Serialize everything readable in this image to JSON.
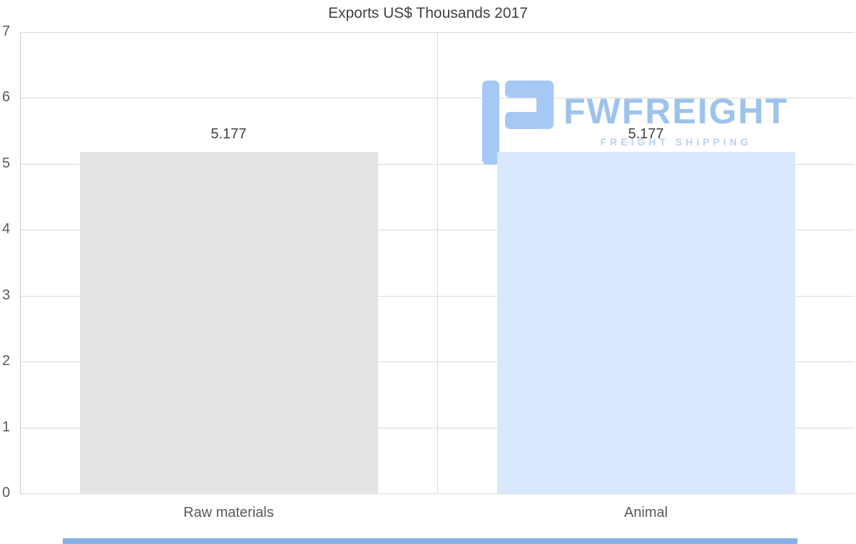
{
  "chart_data": {
    "type": "bar",
    "title": "Exports US$ Thousands 2017",
    "categories": [
      "Raw materials",
      "Animal"
    ],
    "values": [
      5.177,
      5.177
    ],
    "value_labels": [
      "5.177",
      "5.177"
    ],
    "ylim": [
      0,
      7
    ],
    "yticks": [
      "0",
      "1",
      "2",
      "3",
      "4",
      "5",
      "6",
      "7"
    ],
    "bar_colors": [
      "#e4e4e4",
      "#d9e8fc"
    ],
    "grid": "horizontal",
    "legend": "none",
    "xlabel": "",
    "ylabel": ""
  },
  "watermark": {
    "brand": "FWFREIGHT",
    "tagline": "FREIGHT SHIPPING",
    "logo_icon": "fwfreight-monogram-icon",
    "brand_color": "#9cc3ec",
    "icon_color": "#a6c8f5"
  },
  "footer": {
    "strip_color": "#86b2ea"
  },
  "colors": {
    "background": "#ffffff",
    "gridline": "#d9d9d9",
    "axis_text": "#595959",
    "title_text": "#404040",
    "value_text": "#404040"
  }
}
